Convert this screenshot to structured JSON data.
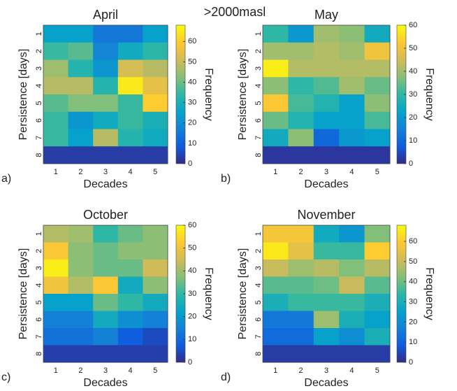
{
  "title": ">2000masl",
  "chart_data": [
    {
      "type": "heatmap",
      "title": "April",
      "panel_label": "a)",
      "xlabel": "Decades",
      "ylabel": "Persistence [days]",
      "colorbar_label": "Frequency",
      "x": [
        1,
        2,
        3,
        4,
        5
      ],
      "y": [
        1,
        2,
        3,
        4,
        5,
        6,
        7,
        8
      ],
      "values": [
        [
          25,
          25,
          15,
          15,
          25
        ],
        [
          35,
          38,
          18,
          28,
          33
        ],
        [
          45,
          32,
          22,
          52,
          48
        ],
        [
          48,
          48,
          32,
          65,
          55
        ],
        [
          38,
          42,
          42,
          35,
          60
        ],
        [
          35,
          22,
          28,
          35,
          30
        ],
        [
          35,
          25,
          48,
          32,
          28
        ],
        [
          3,
          3,
          3,
          3,
          3
        ]
      ],
      "clim": [
        0,
        68
      ],
      "cticks": [
        0,
        10,
        20,
        30,
        40,
        50,
        60
      ],
      "colormap": [
        "#352a87",
        "#0f5cdd",
        "#1481d6",
        "#06a4ca",
        "#2eb7a4",
        "#87bf77",
        "#d1bb59",
        "#fec832",
        "#f9fb0e"
      ]
    },
    {
      "type": "heatmap",
      "title": "May",
      "panel_label": "b)",
      "xlabel": "Decades",
      "ylabel": "Persistence [days]",
      "colorbar_label": "Frequency",
      "x": [
        1,
        2,
        3,
        4,
        5
      ],
      "y": [
        1,
        2,
        3,
        4,
        5,
        6,
        7,
        8
      ],
      "values": [
        [
          30,
          20,
          40,
          38,
          25
        ],
        [
          40,
          40,
          42,
          40,
          50
        ],
        [
          58,
          42,
          42,
          42,
          42
        ],
        [
          38,
          30,
          33,
          40,
          35
        ],
        [
          52,
          32,
          28,
          22,
          38
        ],
        [
          35,
          28,
          22,
          22,
          32
        ],
        [
          25,
          38,
          10,
          20,
          22
        ],
        [
          2,
          2,
          2,
          2,
          2
        ]
      ],
      "clim": [
        0,
        60
      ],
      "cticks": [
        0,
        10,
        20,
        30,
        40,
        50,
        60
      ],
      "colormap": [
        "#352a87",
        "#0f5cdd",
        "#1481d6",
        "#06a4ca",
        "#2eb7a4",
        "#87bf77",
        "#d1bb59",
        "#fec832",
        "#f9fb0e"
      ]
    },
    {
      "type": "heatmap",
      "title": "October",
      "panel_label": "c)",
      "xlabel": "Decades",
      "ylabel": "Persistence [days]",
      "colorbar_label": "Frequency",
      "x": [
        1,
        2,
        3,
        4,
        5
      ],
      "y": [
        1,
        2,
        3,
        4,
        5,
        6,
        7,
        8
      ],
      "values": [
        [
          42,
          40,
          30,
          35,
          38
        ],
        [
          52,
          38,
          35,
          38,
          38
        ],
        [
          58,
          38,
          35,
          35,
          45
        ],
        [
          50,
          42,
          52,
          25,
          38
        ],
        [
          22,
          22,
          35,
          30,
          25
        ],
        [
          15,
          15,
          25,
          18,
          15
        ],
        [
          12,
          12,
          15,
          8,
          5
        ],
        [
          3,
          3,
          3,
          3,
          3
        ]
      ],
      "clim": [
        0,
        60
      ],
      "cticks": [
        0,
        10,
        20,
        30,
        40,
        50,
        60
      ],
      "colormap": [
        "#352a87",
        "#0f5cdd",
        "#1481d6",
        "#06a4ca",
        "#2eb7a4",
        "#87bf77",
        "#d1bb59",
        "#fec832",
        "#f9fb0e"
      ]
    },
    {
      "type": "heatmap",
      "title": "November",
      "panel_label": "d)",
      "xlabel": "Decades",
      "ylabel": "Persistence [days]",
      "colorbar_label": "Frequency",
      "x": [
        1,
        2,
        3,
        4,
        5
      ],
      "y": [
        1,
        2,
        3,
        4,
        5,
        6,
        7,
        8
      ],
      "values": [
        [
          58,
          58,
          28,
          22,
          42
        ],
        [
          65,
          55,
          35,
          35,
          60
        ],
        [
          50,
          45,
          48,
          42,
          48
        ],
        [
          38,
          38,
          40,
          50,
          38
        ],
        [
          30,
          35,
          35,
          35,
          30
        ],
        [
          15,
          15,
          45,
          30,
          25
        ],
        [
          12,
          12,
          25,
          20,
          30
        ],
        [
          3,
          3,
          3,
          3,
          3
        ]
      ],
      "clim": [
        0,
        68
      ],
      "cticks": [
        0,
        10,
        20,
        30,
        40,
        50,
        60
      ],
      "colormap": [
        "#352a87",
        "#0f5cdd",
        "#1481d6",
        "#06a4ca",
        "#2eb7a4",
        "#87bf77",
        "#d1bb59",
        "#fec832",
        "#f9fb0e"
      ]
    }
  ]
}
